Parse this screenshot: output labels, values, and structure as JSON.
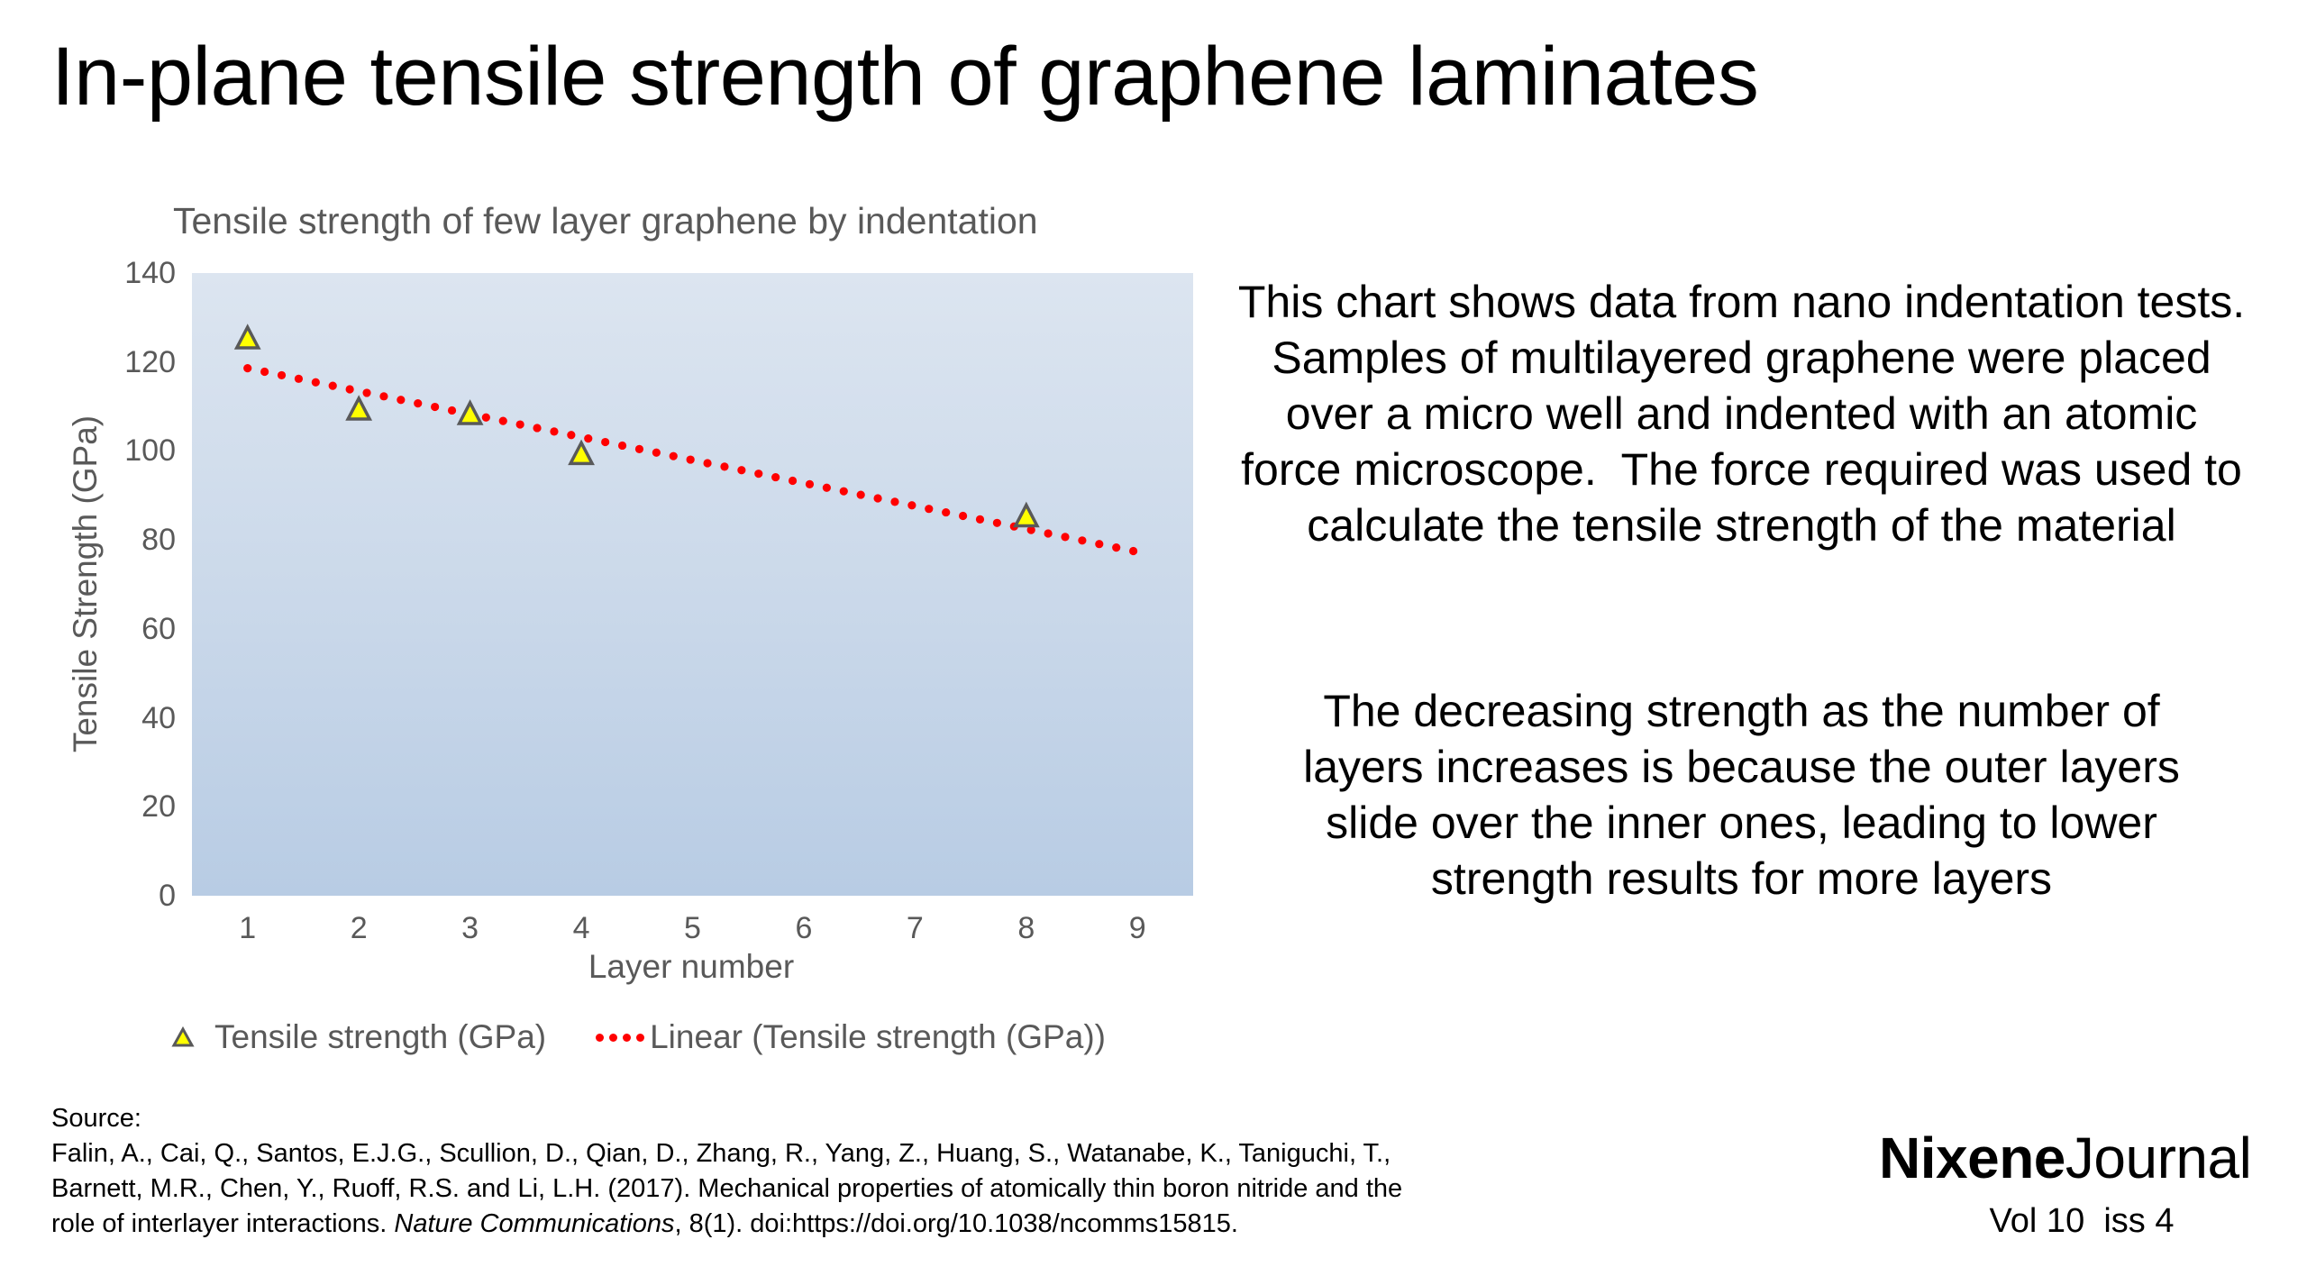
{
  "slide": {
    "title": "In-plane tensile strength of graphene laminates",
    "description_1": [
      "This chart shows data from nano indentation tests.",
      "Samples of multilayered graphene were placed",
      "over a micro well and indented with an atomic",
      "force microscope.  The force required was used to",
      "calculate the tensile strength of the material"
    ],
    "description_2": [
      "The decreasing strength as the number of",
      "layers increases is because the outer layers",
      "slide over the inner ones, leading to lower",
      "strength results for more layers"
    ],
    "source": {
      "label": "Source:",
      "line1": "Falin, A., Cai, Q., Santos, E.J.G., Scullion, D., Qian, D., Zhang, R., Yang, Z., Huang, S., Watanabe, K., Taniguchi, T.,",
      "line2": "Barnett, M.R., Chen, Y., Ruoff, R.S. and Li, L.H. (2017). Mechanical properties of atomically thin boron nitride and the",
      "line3_pre": "role of interlayer interactions. ",
      "line3_journal": "Nature Communications",
      "line3_post": ", 8(1). doi:https://doi.org/10.1038/ncomms15815."
    },
    "logo": {
      "bold": "Nixene",
      "light": "Journal",
      "issue": "Vol 10  iss 4"
    }
  },
  "chart_data": {
    "type": "scatter",
    "title": "Tensile strength of few layer graphene by indentation",
    "xlabel": "Layer number",
    "ylabel": "Tensile Strength (GPa)",
    "xlim": [
      0.5,
      9.5
    ],
    "ylim": [
      0,
      140
    ],
    "x_ticks": [
      "1",
      "2",
      "3",
      "4",
      "5",
      "6",
      "7",
      "8",
      "9"
    ],
    "y_ticks": [
      "0",
      "20",
      "40",
      "60",
      "80",
      "100",
      "120",
      "140"
    ],
    "grid": false,
    "legend_position": "bottom",
    "series": [
      {
        "name": "Tensile strength (GPa)",
        "marker": "triangle",
        "color": "#ffff00",
        "edge_color": "#595959",
        "x": [
          1,
          2,
          3,
          4,
          8
        ],
        "y": [
          125,
          109,
          108,
          99,
          85
        ]
      },
      {
        "name": "Linear (Tensile strength (GPa))",
        "type": "trendline",
        "style": "dotted",
        "color": "#ff0000",
        "x": [
          1,
          9
        ],
        "y": [
          118.6,
          77.3
        ]
      }
    ],
    "plot_background": [
      "#dce5f0",
      "#b8cce4"
    ]
  }
}
